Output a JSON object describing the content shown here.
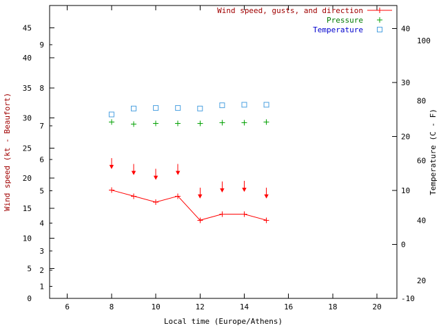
{
  "chart_data": {
    "type": "line",
    "title": "",
    "xlabel": "Local time (Europe/Athens)",
    "ylabel_left": "Wind speed (kt - Beaufort)",
    "ylabel_right": "Temperature (C - F)",
    "x_range": [
      5.2,
      20.9
    ],
    "x_ticks": [
      6,
      8,
      10,
      12,
      14,
      16,
      18,
      20
    ],
    "y_left_range_kt": [
      0,
      48.7
    ],
    "y_left_ticks_kt": [
      0,
      5,
      10,
      15,
      20,
      25,
      30,
      35,
      40,
      45
    ],
    "beaufort_ticks": [
      {
        "label": "1",
        "kt": 2.0
      },
      {
        "label": "2",
        "kt": 4.7
      },
      {
        "label": "3",
        "kt": 7.9
      },
      {
        "label": "4",
        "kt": 12.5
      },
      {
        "label": "5",
        "kt": 17.9
      },
      {
        "label": "6",
        "kt": 23.1
      },
      {
        "label": "7",
        "kt": 28.7
      },
      {
        "label": "8",
        "kt": 35.0
      },
      {
        "label": "9",
        "kt": 42.2
      }
    ],
    "y_right_range_C": [
      -10,
      44.3
    ],
    "y_right_ticks_C": [
      40,
      30,
      20,
      10,
      0,
      -10
    ],
    "y_right_ticks_F": [
      100,
      80,
      60,
      40,
      20
    ],
    "x": [
      8,
      9,
      10,
      11,
      12,
      13,
      14,
      15
    ],
    "series": [
      {
        "name": "Wind speed, gusts, and direction",
        "axis": "left",
        "marker": "line-plus",
        "color": "#ff0000",
        "label_color": "#a00000",
        "values": [
          18,
          17,
          16,
          17,
          13,
          14,
          14,
          13
        ]
      },
      {
        "name": "Pressure",
        "axis": "left",
        "marker": "plus",
        "color": "#00a000",
        "label_color": "#007a00",
        "values": [
          29.3,
          29.0,
          29.1,
          29.1,
          29.1,
          29.2,
          29.2,
          29.3
        ]
      },
      {
        "name": "Temperature",
        "axis": "right",
        "marker": "square-open",
        "color": "#4aa0e0",
        "label_color": "#0000cd",
        "values": [
          24.1,
          25.2,
          25.3,
          25.3,
          25.2,
          25.8,
          25.9,
          25.9
        ]
      }
    ],
    "gusts": {
      "color": "#ff0000",
      "arrow_direction": "down",
      "values_kt": [
        21.5,
        20.5,
        19.7,
        20.5,
        16.6,
        17.6,
        17.7,
        16.6
      ]
    },
    "legend_position": "top-right",
    "grid": false
  },
  "frame": {
    "background": "#ffffff",
    "border_color": "#000000",
    "tick_label_color": "#000000"
  }
}
